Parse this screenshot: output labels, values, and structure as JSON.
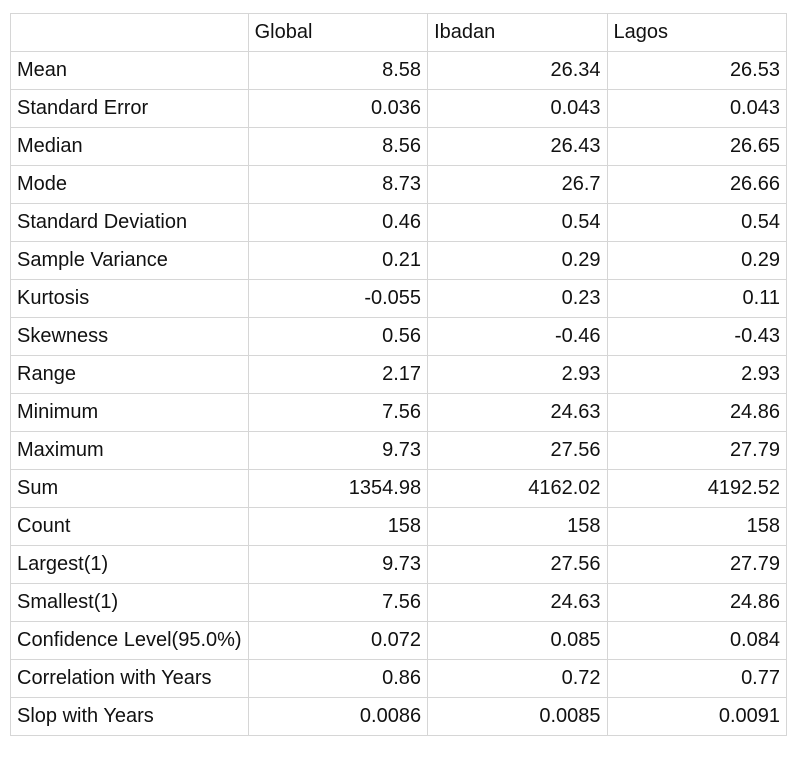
{
  "header": {
    "corner": "",
    "cols": [
      "Global",
      "Ibadan",
      "Lagos"
    ]
  },
  "rows": [
    {
      "label": "Mean",
      "values": [
        "8.58",
        "26.34",
        "26.53"
      ]
    },
    {
      "label": "Standard Error",
      "values": [
        "0.036",
        "0.043",
        "0.043"
      ]
    },
    {
      "label": "Median",
      "values": [
        "8.56",
        "26.43",
        "26.65"
      ]
    },
    {
      "label": "Mode",
      "values": [
        "8.73",
        "26.7",
        "26.66"
      ]
    },
    {
      "label": "Standard Deviation",
      "values": [
        "0.46",
        "0.54",
        "0.54"
      ]
    },
    {
      "label": "Sample Variance",
      "values": [
        "0.21",
        "0.29",
        "0.29"
      ]
    },
    {
      "label": "Kurtosis",
      "values": [
        "-0.055",
        "0.23",
        "0.11"
      ]
    },
    {
      "label": "Skewness",
      "values": [
        "0.56",
        "-0.46",
        "-0.43"
      ]
    },
    {
      "label": "Range",
      "values": [
        "2.17",
        "2.93",
        "2.93"
      ]
    },
    {
      "label": "Minimum",
      "values": [
        "7.56",
        "24.63",
        "24.86"
      ]
    },
    {
      "label": "Maximum",
      "values": [
        "9.73",
        "27.56",
        "27.79"
      ]
    },
    {
      "label": "Sum",
      "values": [
        "1354.98",
        "4162.02",
        "4192.52"
      ]
    },
    {
      "label": "Count",
      "values": [
        "158",
        "158",
        "158"
      ]
    },
    {
      "label": "Largest(1)",
      "values": [
        "9.73",
        "27.56",
        "27.79"
      ]
    },
    {
      "label": "Smallest(1)",
      "values": [
        "7.56",
        "24.63",
        "24.86"
      ]
    },
    {
      "label": "Confidence Level(95.0%)",
      "values": [
        "0.072",
        "0.085",
        "0.084"
      ]
    },
    {
      "label": "Correlation with Years",
      "values": [
        "0.86",
        "0.72",
        "0.77"
      ]
    },
    {
      "label": "Slop with Years",
      "values": [
        "0.0086",
        "0.0085",
        "0.0091"
      ]
    }
  ]
}
